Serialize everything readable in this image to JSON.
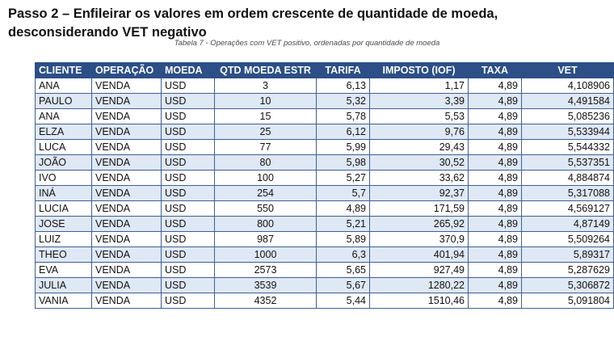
{
  "heading": {
    "line1": "Passo 2 – Enfileirar os valores em ordem crescente de quantidade de moeda,",
    "line2": "desconsiderando VET negativo"
  },
  "caption": "Tabela 7 - Operações com VET positivo, ordenadas por quantidade de moeda",
  "table": {
    "headers": [
      "CLIENTE",
      "OPERAÇÃO",
      "MOEDA",
      "QTD MOEDA ESTR",
      "TARIFA",
      "IMPOSTO (IOF)",
      "TAXA",
      "VET"
    ],
    "rows": [
      [
        "ANA",
        "VENDA",
        "USD",
        "3",
        "6,13",
        "1,17",
        "4,89",
        "4,108906"
      ],
      [
        "PAULO",
        "VENDA",
        "USD",
        "10",
        "5,32",
        "3,39",
        "4,89",
        "4,491584"
      ],
      [
        "ANA",
        "VENDA",
        "USD",
        "15",
        "5,78",
        "5,53",
        "4,89",
        "5,085236"
      ],
      [
        "ELZA",
        "VENDA",
        "USD",
        "25",
        "6,12",
        "9,76",
        "4,89",
        "5,533944"
      ],
      [
        "LUCA",
        "VENDA",
        "USD",
        "77",
        "5,99",
        "29,43",
        "4,89",
        "5,544332"
      ],
      [
        "JOÃO",
        "VENDA",
        "USD",
        "80",
        "5,98",
        "30,52",
        "4,89",
        "5,537351"
      ],
      [
        "IVO",
        "VENDA",
        "USD",
        "100",
        "5,27",
        "33,62",
        "4,89",
        "4,884874"
      ],
      [
        "INÁ",
        "VENDA",
        "USD",
        "254",
        "5,7",
        "92,37",
        "4,89",
        "5,317088"
      ],
      [
        "LUCIA",
        "VENDA",
        "USD",
        "550",
        "4,89",
        "171,59",
        "4,89",
        "4,569127"
      ],
      [
        "JOSE",
        "VENDA",
        "USD",
        "800",
        "5,21",
        "265,92",
        "4,89",
        "4,87149"
      ],
      [
        "LUIZ",
        "VENDA",
        "USD",
        "987",
        "5,89",
        "370,9",
        "4,89",
        "5,509264"
      ],
      [
        "THEO",
        "VENDA",
        "USD",
        "1000",
        "6,3",
        "401,94",
        "4,89",
        "5,89317"
      ],
      [
        "EVA",
        "VENDA",
        "USD",
        "2573",
        "5,65",
        "927,49",
        "4,89",
        "5,287629"
      ],
      [
        "JULIA",
        "VENDA",
        "USD",
        "3539",
        "5,67",
        "1280,22",
        "4,89",
        "5,306872"
      ],
      [
        "VANIA",
        "VENDA",
        "USD",
        "4352",
        "5,44",
        "1510,46",
        "4,89",
        "5,091804"
      ]
    ]
  },
  "colors": {
    "header_bg": "#2b4f86",
    "header_text": "#ffffff",
    "stripe": "#dfe8f5",
    "border": "#3d5f95"
  }
}
